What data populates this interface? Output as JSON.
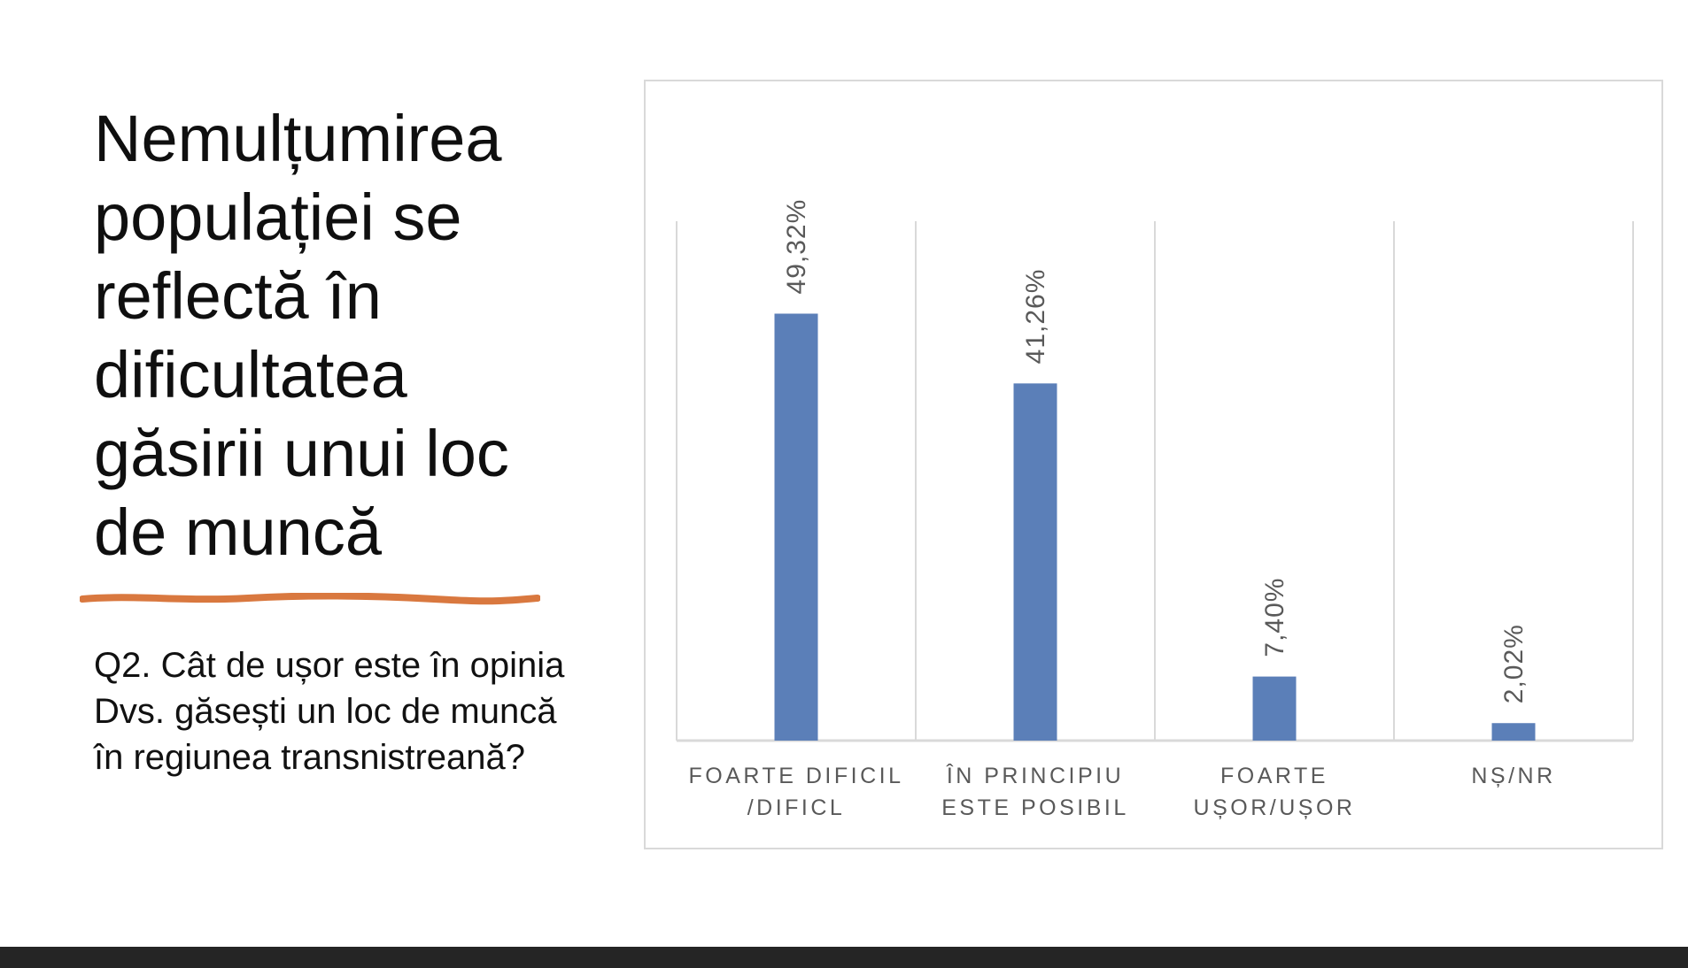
{
  "slide": {
    "title": "Nemulțumirea populației se reflectă în dificultatea găsirii unui loc de muncă",
    "question": "Q2. Cât de ușor este în opinia Dvs. găsești un loc de muncă în regiunea transnistreană?",
    "accent_color": "#d9783f"
  },
  "chart_data": {
    "type": "bar",
    "categories": [
      "FOARTE DIFICIL /DIFICL",
      "ÎN PRINCIPIU ESTE POSIBIL",
      "FOARTE UȘOR/UȘOR",
      "NȘ/NR"
    ],
    "values": [
      49.32,
      41.26,
      7.4,
      2.02
    ],
    "data_labels": [
      "49,32%",
      "41,26%",
      "7,40%",
      "2,02%"
    ],
    "title": "",
    "xlabel": "",
    "ylabel": "",
    "ylim": [
      0,
      60
    ],
    "grid": "vertical separators",
    "legend": "none",
    "bar_color": "#5b7fb8",
    "label_color": "#595959",
    "gridline_color": "#d9d9d9"
  }
}
